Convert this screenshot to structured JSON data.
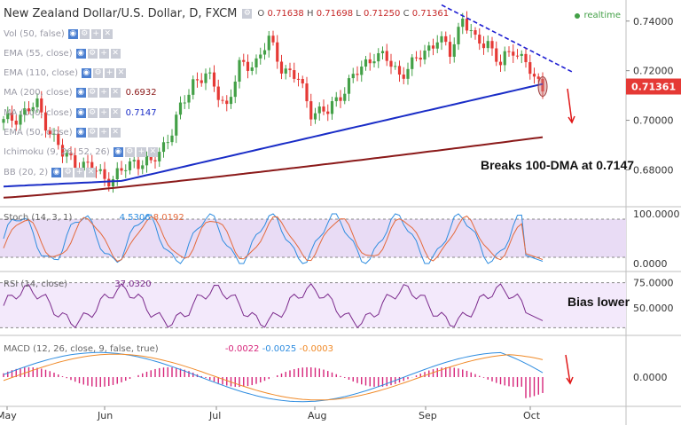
{
  "header": {
    "title": "New Zealand Dollar/U.S. Dollar, D, FXCM",
    "ohlc": [
      {
        "k": "O",
        "v": "0.71638"
      },
      {
        "k": "H",
        "v": "0.71698"
      },
      {
        "k": "L",
        "v": "0.71250"
      },
      {
        "k": "C",
        "v": "0.71361"
      }
    ],
    "realtime": "realtime"
  },
  "indicators": [
    {
      "label": "Vol (50, false)",
      "value": ""
    },
    {
      "label": "EMA (55, close)",
      "value": ""
    },
    {
      "label": "EMA (110, close)",
      "value": ""
    },
    {
      "label": "MA (200, close)",
      "value": "0.6932"
    },
    {
      "label": "MA (100, close)",
      "value": "0.7147"
    },
    {
      "label": "EMA (50, close)",
      "value": ""
    },
    {
      "label": "Ichimoku (9, 26, 52, 26)",
      "value": ""
    },
    {
      "label": "BB (20, 2)",
      "value": ""
    }
  ],
  "panes": {
    "stoch": {
      "label": "Stoch (14, 3, 1)",
      "k": "4.5306",
      "d": "8.0192"
    },
    "rsi": {
      "label": "RSI (14, close)",
      "value": "37.0320"
    },
    "macd": {
      "label": "MACD (12, 26, close, 9, false, true)",
      "hist": "-0.0022",
      "macd": "-0.0025",
      "signal": "-0.0003"
    }
  },
  "annotations": {
    "main": "Breaks 100-DMA at 0.7147",
    "rsi": "Bias lower"
  },
  "price_tag": "0.71361",
  "colors": {
    "up": "#43a047",
    "down": "#e53935",
    "ma100": "#1a2dc7",
    "ma200": "#8b1a1a",
    "trend": "#1e1ed2",
    "stoch_k": "#2f8de0",
    "stoch_d": "#e46a3c",
    "rsi": "#7b2a8c",
    "macd": "#2f8de0",
    "signal": "#f08a28",
    "hist": "#d6247a",
    "arrow": "#e01818",
    "band": "#e9dcf5"
  },
  "chart_data": [
    {
      "type": "candlestick",
      "title": "New Zealand Dollar/U.S. Dollar, D, FXCM",
      "x_ticks": [
        "May",
        "Jun",
        "Jul",
        "Aug",
        "Sep",
        "Oct"
      ],
      "y_ticks": [
        "0.74000",
        "0.72000",
        "0.70000",
        "0.68000"
      ],
      "ylim": [
        0.6655,
        0.7485
      ],
      "last_close": 0.71361,
      "ma_200": {
        "start": 0.6688,
        "end": 0.6932
      },
      "ma_100": {
        "start": 0.6733,
        "end": 0.7147
      },
      "trendline": {
        "from": 0.7465,
        "to": 0.7195
      }
    },
    {
      "type": "line",
      "title": "Stoch (14, 3, 1)",
      "y_ticks": [
        "100.0000",
        "0.0000"
      ],
      "ylim": [
        0,
        100
      ],
      "k_last": 4.5306,
      "d_last": 8.0192
    },
    {
      "type": "line",
      "title": "RSI (14, close)",
      "y_ticks": [
        "75.0000",
        "50.0000"
      ],
      "ylim": [
        25,
        80
      ],
      "last": 37.032
    },
    {
      "type": "line",
      "title": "MACD (12, 26, close, 9, false, true)",
      "y_ticks": [
        "0.0000"
      ],
      "last_macd": -0.0025,
      "last_signal": -0.0003,
      "last_hist": -0.0022
    }
  ]
}
